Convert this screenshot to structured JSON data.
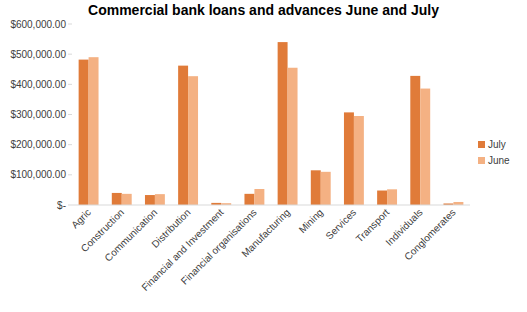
{
  "chart_data": {
    "type": "bar",
    "title": "Commercial bank loans and advances June and July",
    "categories": [
      "Agric",
      "Construction",
      "Communication",
      "Distribution",
      "Financial and Investment",
      "Financial organisations",
      "Manufacturing",
      "Mining",
      "Services",
      "Transport",
      "Individuals",
      "Conglomerates"
    ],
    "series": [
      {
        "name": "July",
        "color": "#e07b39",
        "values": [
          482000,
          40000,
          33000,
          462000,
          7000,
          37000,
          540000,
          115000,
          307000,
          48000,
          428000,
          5000
        ]
      },
      {
        "name": "June",
        "color": "#f4b183",
        "values": [
          490000,
          37000,
          36000,
          427000,
          6000,
          53000,
          455000,
          110000,
          295000,
          52000,
          386000,
          10000
        ]
      }
    ],
    "ylim": [
      0,
      600000
    ],
    "yticks": [
      {
        "value": 0,
        "label": "$-"
      },
      {
        "value": 100000,
        "label": "$100,000.00"
      },
      {
        "value": 200000,
        "label": "$200,000.00"
      },
      {
        "value": 300000,
        "label": "$300,000.00"
      },
      {
        "value": 400000,
        "label": "$400,000.00"
      },
      {
        "value": 500000,
        "label": "$500,000.00"
      },
      {
        "value": 600000,
        "label": "$600,000.00"
      }
    ],
    "grid": false,
    "legend": "right"
  }
}
